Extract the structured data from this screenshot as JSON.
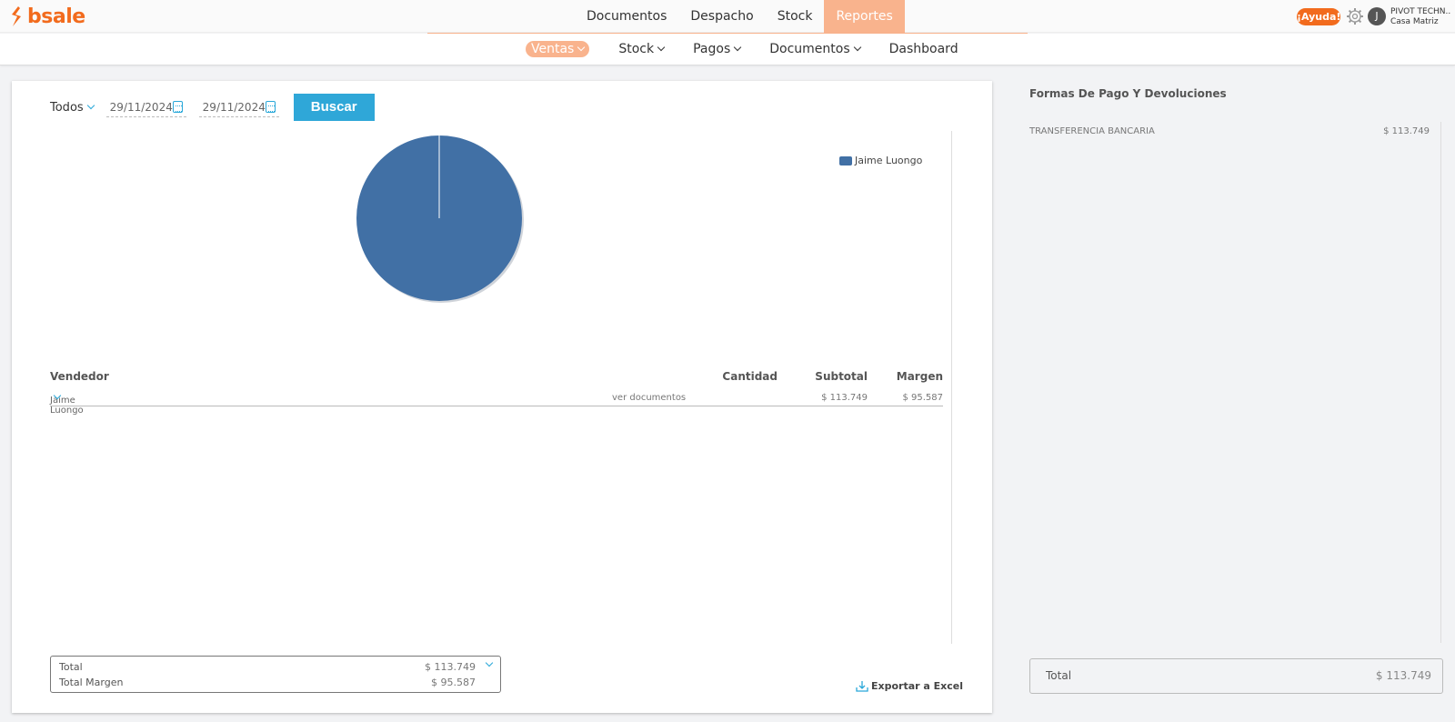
{
  "brand": {
    "name": "bsale",
    "color": "#f26b1d"
  },
  "main_nav": [
    {
      "label": "Documentos",
      "active": false
    },
    {
      "label": "Despacho",
      "active": false
    },
    {
      "label": "Stock",
      "active": false
    },
    {
      "label": "Reportes",
      "active": true
    }
  ],
  "header": {
    "help_label": "¡Ayuda!",
    "user_initial": "J",
    "company_name": "PIVOT TECHN...",
    "branch": "Casa Matriz"
  },
  "sub_nav": [
    {
      "label": "Ventas",
      "active": true
    },
    {
      "label": "Stock",
      "active": false
    },
    {
      "label": "Pagos",
      "active": false
    },
    {
      "label": "Documentos",
      "active": false
    },
    {
      "label": "Dashboard",
      "active": false
    }
  ],
  "filters": {
    "scope": "Todos",
    "date_from": "29/11/2024",
    "date_to": "29/11/2024",
    "search_button": "Buscar"
  },
  "chart_data": {
    "type": "pie",
    "title": "",
    "legend_position": "top-right",
    "slices": [
      {
        "label": "Jaime Luongo",
        "value": 113749,
        "color": "#4170a5"
      }
    ]
  },
  "table": {
    "headers": {
      "vendedor": "Vendedor",
      "cantidad": "Cantidad",
      "subtotal": "Subtotal",
      "margen": "Margen"
    },
    "rows": [
      {
        "vendedor": "Jaime Luongo",
        "link": "ver documentos",
        "cantidad": "",
        "subtotal": "$ 113.749",
        "margen": "$ 95.587"
      }
    ]
  },
  "totals": {
    "total_label": "Total",
    "total_value": "$ 113.749",
    "margin_label": "Total Margen",
    "margin_value": "$ 95.587"
  },
  "export_label": "Exportar a Excel",
  "side_panel": {
    "title": "Formas De Pago Y Devoluciones",
    "payments": [
      {
        "method": "TRANSFERENCIA BANCARIA",
        "amount": "$ 113.749"
      }
    ],
    "total_label": "Total",
    "total_value": "$ 113.749"
  }
}
